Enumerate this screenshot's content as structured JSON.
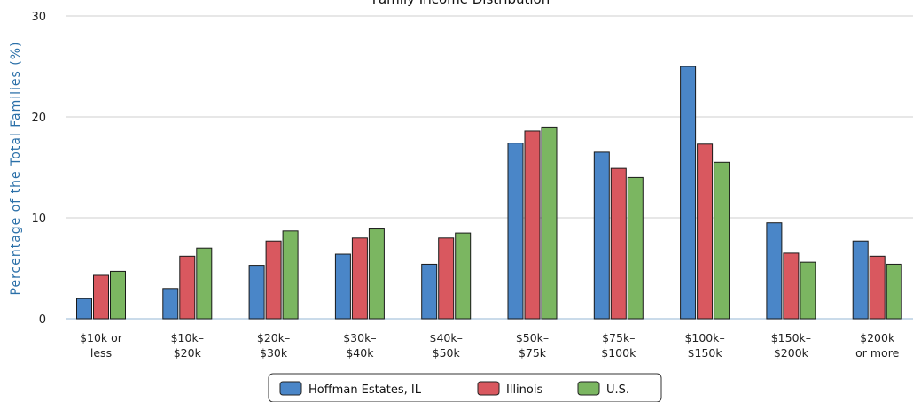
{
  "chart_data": {
    "type": "bar",
    "title": "Family Income Distribution",
    "ylabel": "Percentage of the Total Families (%)",
    "xlabel": "",
    "ylim": [
      0,
      30
    ],
    "yticks": [
      0,
      10,
      20,
      30
    ],
    "grid": true,
    "legend_position": "bottom-center",
    "categories": [
      [
        "$10k or",
        "less"
      ],
      [
        "$10k–",
        "$20k"
      ],
      [
        "$20k–",
        "$30k"
      ],
      [
        "$30k–",
        "$40k"
      ],
      [
        "$40k–",
        "$50k"
      ],
      [
        "$50k–",
        "$75k"
      ],
      [
        "$75k–",
        "$100k"
      ],
      [
        "$100k–",
        "$150k"
      ],
      [
        "$150k–",
        "$200k"
      ],
      [
        "$200k",
        "or more"
      ]
    ],
    "series": [
      {
        "name": "Hoffman Estates, IL",
        "color": "#4a86c8",
        "values": [
          2.0,
          3.0,
          5.3,
          6.4,
          5.4,
          17.4,
          16.5,
          25.0,
          9.5,
          7.7
        ]
      },
      {
        "name": "Illinois",
        "color": "#d9585f",
        "values": [
          4.3,
          6.2,
          7.7,
          8.0,
          8.0,
          18.6,
          14.9,
          17.3,
          6.5,
          6.2
        ]
      },
      {
        "name": "U.S.",
        "color": "#7bb661",
        "values": [
          4.7,
          7.0,
          8.7,
          8.9,
          8.5,
          19.0,
          14.0,
          15.5,
          5.6,
          5.4
        ]
      }
    ]
  }
}
